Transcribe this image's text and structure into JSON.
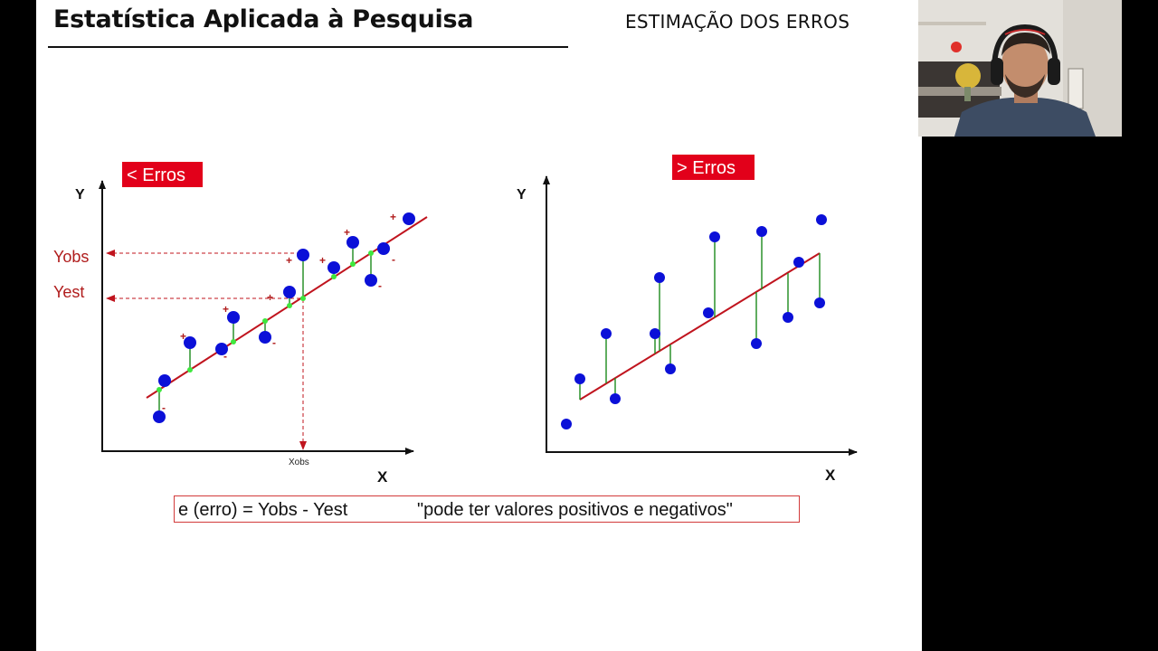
{
  "slide": {
    "title": "Estatística Aplicada à Pesquisa",
    "subtitle": "ESTIMAÇÃO DOS ERROS",
    "formula_left": "e (erro) = Yobs - Yest",
    "formula_right": "\"pode ter valores positivos e negativos\""
  },
  "left_diagram": {
    "badge": "< Erros",
    "y_axis_label": "Y",
    "x_axis_label": "X",
    "yobs_label": "Yobs",
    "yest_label": "Yest",
    "xobs_label": "Xobs",
    "plus_sign": "+",
    "minus_sign": "-"
  },
  "right_diagram": {
    "badge": "> Erros",
    "y_axis_label": "Y",
    "x_axis_label": "X"
  },
  "colors": {
    "point": "#0b10d8",
    "fit_line": "#c0141e",
    "residual": "#1c8a1c",
    "fit_point": "#3ee83e",
    "badge_bg": "#e2001a",
    "label_red": "#b01c1c"
  },
  "webcam": {
    "content": "presenter-video-feed"
  }
}
